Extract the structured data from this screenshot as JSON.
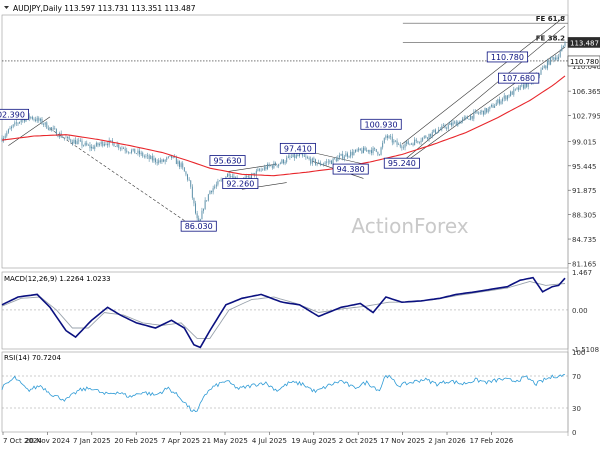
{
  "symbol_title": "AUDJPY,Daily  113.597 113.731 113.351 113.487",
  "watermark": "ActionForex",
  "colors": {
    "background": "#ffffff",
    "candles": "#5b8fa8",
    "ma": "#e8262b",
    "macd": "#0b1180",
    "signal": "#9aa3ad",
    "rsi": "#2f9bd6",
    "levels": "#4a4a4a",
    "label_border": "#0b1180",
    "label_text": "#0b1180",
    "price_box": "#2b2b2b"
  },
  "chart_data": [
    {
      "type": "candlestick",
      "pane": "price",
      "title": "AUDJPY,Daily",
      "ohlc_last": {
        "open": 113.597,
        "high": 113.731,
        "low": 113.351,
        "close": 113.487
      },
      "x_tick_labels": [
        "7 Oct 2024",
        "20 Nov 2024",
        "7 Jan 2025",
        "20 Feb 2025",
        "7 Apr 2025",
        "21 May 2025",
        "4 Jul 2025",
        "19 Aug 2025",
        "2 Oct 2025",
        "17 Nov 2025",
        "2 Jan 2026",
        "17 Feb 2026"
      ],
      "y_tick_labels": [
        "81.165",
        "84.735",
        "88.305",
        "91.875",
        "95.445",
        "99.015",
        "102.795",
        "106.365",
        "110.040",
        "113.487"
      ],
      "ylim": [
        80.5,
        117.5
      ],
      "bars": 353,
      "close_path": [
        [
          0,
          99.5
        ],
        [
          6,
          101.0
        ],
        [
          12,
          102.2
        ],
        [
          18,
          102.6
        ],
        [
          25,
          101.8
        ],
        [
          32,
          100.6
        ],
        [
          40,
          99.4
        ],
        [
          48,
          98.8
        ],
        [
          56,
          98.1
        ],
        [
          64,
          98.9
        ],
        [
          70,
          98.7
        ],
        [
          78,
          97.8
        ],
        [
          86,
          97.2
        ],
        [
          92,
          96.5
        ],
        [
          100,
          96.0
        ],
        [
          106,
          96.7
        ],
        [
          112,
          95.4
        ],
        [
          117,
          93.2
        ],
        [
          121,
          88.5
        ],
        [
          123,
          86.4
        ],
        [
          126,
          89.5
        ],
        [
          130,
          91.8
        ],
        [
          136,
          93.0
        ],
        [
          142,
          94.4
        ],
        [
          148,
          93.2
        ],
        [
          154,
          93.6
        ],
        [
          160,
          94.6
        ],
        [
          166,
          95.3
        ],
        [
          172,
          95.7
        ],
        [
          180,
          96.6
        ],
        [
          186,
          96.9
        ],
        [
          192,
          96.3
        ],
        [
          198,
          95.7
        ],
        [
          206,
          96.1
        ],
        [
          214,
          97.0
        ],
        [
          222,
          97.5
        ],
        [
          230,
          97.8
        ],
        [
          236,
          97.4
        ],
        [
          240,
          99.8
        ],
        [
          248,
          98.4
        ],
        [
          256,
          98.8
        ],
        [
          264,
          99.6
        ],
        [
          272,
          100.6
        ],
        [
          280,
          101.4
        ],
        [
          288,
          102.1
        ],
        [
          296,
          103.0
        ],
        [
          304,
          103.6
        ],
        [
          310,
          104.8
        ],
        [
          318,
          106.0
        ],
        [
          326,
          107.1
        ],
        [
          332,
          107.9
        ],
        [
          338,
          109.6
        ],
        [
          344,
          111.2
        ],
        [
          348,
          111.5
        ],
        [
          352,
          113.49
        ]
      ],
      "moving_average": {
        "color": "#e8262b",
        "path": [
          [
            0,
            99.2
          ],
          [
            20,
            99.8
          ],
          [
            40,
            100.0
          ],
          [
            60,
            99.3
          ],
          [
            80,
            98.4
          ],
          [
            100,
            97.4
          ],
          [
            115,
            96.3
          ],
          [
            130,
            95.1
          ],
          [
            150,
            94.2
          ],
          [
            170,
            94.0
          ],
          [
            190,
            94.5
          ],
          [
            210,
            95.1
          ],
          [
            230,
            96.0
          ],
          [
            250,
            97.1
          ],
          [
            270,
            98.6
          ],
          [
            290,
            100.3
          ],
          [
            310,
            102.5
          ],
          [
            330,
            105.0
          ],
          [
            345,
            107.3
          ],
          [
            352,
            108.6
          ]
        ]
      },
      "horizontal_levels": [
        {
          "label": "FE 61.8",
          "value": 116.3,
          "style": "solid"
        },
        {
          "label": "FE 38.2",
          "value": 113.45,
          "style": "solid"
        },
        {
          "label": "",
          "value": 110.78,
          "style": "dotted"
        }
      ],
      "level_labels": [
        {
          "text": "102.390",
          "x": 4,
          "y": 102.39
        },
        {
          "text": "86.030",
          "x": 123,
          "y": 86.03
        },
        {
          "text": "95.630",
          "x": 141,
          "y": 95.63
        },
        {
          "text": "92.260",
          "x": 149,
          "y": 92.26
        },
        {
          "text": "97.410",
          "x": 185,
          "y": 97.41
        },
        {
          "text": "94.380",
          "x": 218,
          "y": 94.38
        },
        {
          "text": "100.930",
          "x": 237,
          "y": 100.93
        },
        {
          "text": "95.240",
          "x": 250,
          "y": 95.24
        },
        {
          "text": "110.780",
          "x": 316,
          "y": 110.78
        },
        {
          "text": "107.680",
          "x": 323,
          "y": 107.68
        }
      ],
      "price_tags": [
        {
          "text": "113.487",
          "value": 113.487,
          "style": "dark"
        },
        {
          "text": "110.780",
          "value": 110.78,
          "style": "light"
        }
      ]
    },
    {
      "type": "line",
      "pane": "macd",
      "title": "MACD(12,26,9) 1.2264 1.0233",
      "y_tick_labels": [
        "1.467",
        "0.00",
        "-1.5108"
      ],
      "ylim": [
        -1.5108,
        1.467
      ],
      "series": [
        {
          "name": "MACD",
          "color": "#0b1180",
          "values": [
            [
              0,
              0.2
            ],
            [
              10,
              0.5
            ],
            [
              22,
              0.6
            ],
            [
              30,
              0.1
            ],
            [
              40,
              -0.8
            ],
            [
              46,
              -1.05
            ],
            [
              56,
              -0.4
            ],
            [
              66,
              0.1
            ],
            [
              74,
              -0.2
            ],
            [
              84,
              -0.5
            ],
            [
              96,
              -0.7
            ],
            [
              106,
              -0.4
            ],
            [
              114,
              -0.7
            ],
            [
              120,
              -1.35
            ],
            [
              124,
              -1.45
            ],
            [
              130,
              -0.8
            ],
            [
              140,
              0.2
            ],
            [
              150,
              0.45
            ],
            [
              162,
              0.6
            ],
            [
              175,
              0.3
            ],
            [
              186,
              0.2
            ],
            [
              198,
              -0.25
            ],
            [
              212,
              0.1
            ],
            [
              224,
              0.25
            ],
            [
              232,
              -0.1
            ],
            [
              240,
              0.5
            ],
            [
              250,
              0.3
            ],
            [
              262,
              0.35
            ],
            [
              274,
              0.45
            ],
            [
              284,
              0.6
            ],
            [
              296,
              0.7
            ],
            [
              306,
              0.8
            ],
            [
              316,
              0.9
            ],
            [
              324,
              1.15
            ],
            [
              332,
              1.25
            ],
            [
              338,
              0.7
            ],
            [
              344,
              0.9
            ],
            [
              348,
              0.95
            ],
            [
              352,
              1.2264
            ]
          ]
        },
        {
          "name": "Signal",
          "color": "#9aa3ad",
          "values": [
            [
              0,
              0.15
            ],
            [
              12,
              0.45
            ],
            [
              24,
              0.5
            ],
            [
              34,
              0.0
            ],
            [
              44,
              -0.7
            ],
            [
              54,
              -0.7
            ],
            [
              64,
              -0.1
            ],
            [
              76,
              -0.2
            ],
            [
              88,
              -0.5
            ],
            [
              100,
              -0.6
            ],
            [
              112,
              -0.5
            ],
            [
              122,
              -1.1
            ],
            [
              130,
              -1.1
            ],
            [
              142,
              0.0
            ],
            [
              156,
              0.4
            ],
            [
              170,
              0.5
            ],
            [
              184,
              0.25
            ],
            [
              198,
              -0.1
            ],
            [
              214,
              0.05
            ],
            [
              228,
              0.15
            ],
            [
              242,
              0.3
            ],
            [
              256,
              0.3
            ],
            [
              270,
              0.4
            ],
            [
              284,
              0.55
            ],
            [
              300,
              0.7
            ],
            [
              316,
              0.85
            ],
            [
              330,
              1.1
            ],
            [
              340,
              0.95
            ],
            [
              352,
              1.0233
            ]
          ]
        }
      ]
    },
    {
      "type": "line",
      "pane": "rsi",
      "title": "RSI(14) 70.7204",
      "y_tick_labels": [
        "100",
        "70",
        "30",
        "0"
      ],
      "ylim": [
        0,
        100
      ],
      "reference_levels": [
        70,
        30
      ],
      "series": [
        {
          "name": "RSI",
          "color": "#2f9bd6",
          "values": [
            [
              0,
              55
            ],
            [
              8,
              68
            ],
            [
              16,
              52
            ],
            [
              24,
              58
            ],
            [
              32,
              46
            ],
            [
              40,
              40
            ],
            [
              48,
              52
            ],
            [
              56,
              55
            ],
            [
              64,
              47
            ],
            [
              72,
              50
            ],
            [
              80,
              44
            ],
            [
              88,
              50
            ],
            [
              96,
              46
            ],
            [
              104,
              55
            ],
            [
              112,
              42
            ],
            [
              118,
              28
            ],
            [
              122,
              24
            ],
            [
              126,
              45
            ],
            [
              132,
              56
            ],
            [
              140,
              64
            ],
            [
              148,
              54
            ],
            [
              156,
              58
            ],
            [
              164,
              62
            ],
            [
              172,
              52
            ],
            [
              180,
              62
            ],
            [
              188,
              60
            ],
            [
              196,
              50
            ],
            [
              204,
              58
            ],
            [
              212,
              64
            ],
            [
              220,
              55
            ],
            [
              228,
              62
            ],
            [
              236,
              52
            ],
            [
              240,
              72
            ],
            [
              248,
              58
            ],
            [
              256,
              62
            ],
            [
              264,
              66
            ],
            [
              272,
              60
            ],
            [
              280,
              64
            ],
            [
              288,
              60
            ],
            [
              296,
              65
            ],
            [
              304,
              62
            ],
            [
              312,
              66
            ],
            [
              320,
              64
            ],
            [
              328,
              68
            ],
            [
              334,
              60
            ],
            [
              340,
              66
            ],
            [
              346,
              70
            ],
            [
              352,
              70.72
            ]
          ]
        }
      ]
    }
  ]
}
